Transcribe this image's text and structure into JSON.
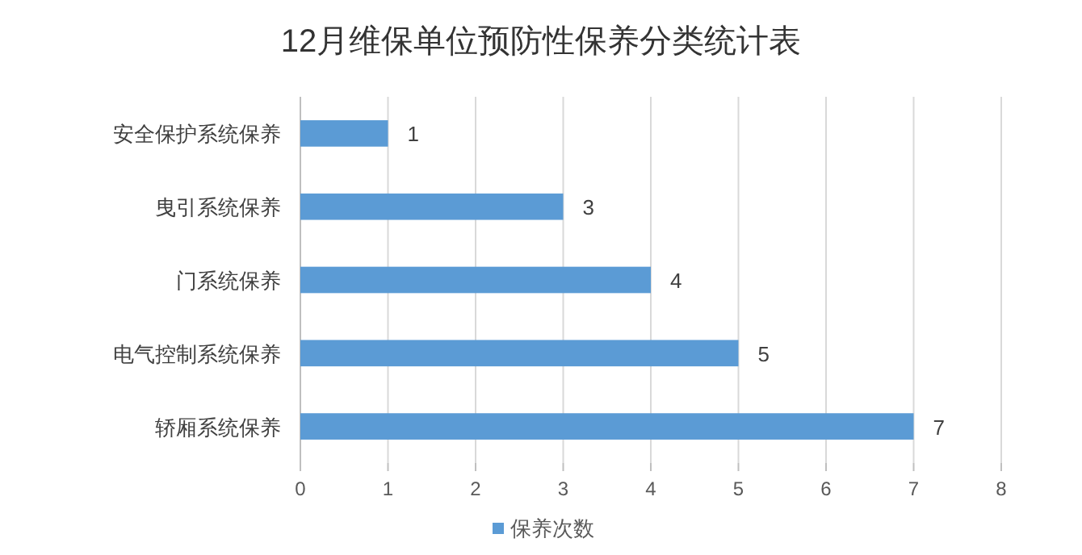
{
  "chart_data": {
    "type": "bar",
    "orientation": "horizontal",
    "title": "12月维保单位预防性保养分类统计表",
    "categories": [
      "安全保护系统保养",
      "曳引系统保养",
      "门系统保养",
      "电气控制系统保养",
      "轿厢系统保养"
    ],
    "series": [
      {
        "name": "保养次数",
        "color": "#5b9bd5",
        "values": [
          1,
          3,
          4,
          5,
          7
        ]
      }
    ],
    "xlim": [
      0,
      8
    ],
    "xticks": [
      0,
      1,
      2,
      3,
      4,
      5,
      6,
      7,
      8
    ],
    "grid": "x",
    "legend": "bottom",
    "data_labels": true
  }
}
